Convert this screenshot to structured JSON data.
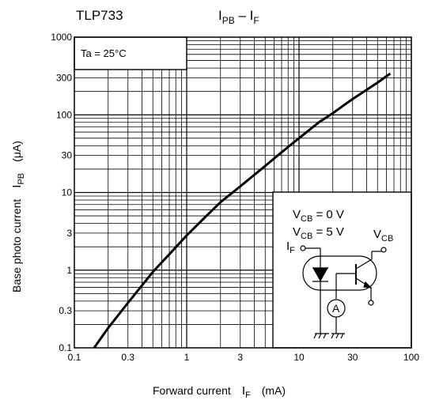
{
  "chart_data": {
    "type": "line",
    "device": "TLP733",
    "title_main": "I",
    "title_sub1": "PB",
    "title_dash": " – I",
    "title_sub2": "F",
    "condition": "Ta = 25°C",
    "xlabel": "Forward current",
    "xlabel_sym": "I",
    "xlabel_sub": "F",
    "xlabel_unit": "(mA)",
    "ylabel": "Base photo current",
    "ylabel_sym": "I",
    "ylabel_sub": "PB",
    "ylabel_unit": "(μA)",
    "x_scale": "log",
    "y_scale": "log",
    "xlim": [
      0.1,
      100
    ],
    "ylim": [
      0.1,
      1000
    ],
    "x_ticks": [
      {
        "v": 0.1,
        "label": "0.1"
      },
      {
        "v": 0.3,
        "label": "0.3"
      },
      {
        "v": 1,
        "label": "1"
      },
      {
        "v": 3,
        "label": "3"
      },
      {
        "v": 10,
        "label": "10"
      },
      {
        "v": 30,
        "label": "30"
      },
      {
        "v": 100,
        "label": "100"
      }
    ],
    "y_ticks": [
      {
        "v": 0.1,
        "label": "0.1"
      },
      {
        "v": 0.3,
        "label": "0.3"
      },
      {
        "v": 1,
        "label": "1"
      },
      {
        "v": 3,
        "label": "3"
      },
      {
        "v": 10,
        "label": "10"
      },
      {
        "v": 30,
        "label": "30"
      },
      {
        "v": 100,
        "label": "100"
      },
      {
        "v": 300,
        "label": "300"
      },
      {
        "v": 1000,
        "label": "1000"
      }
    ],
    "grid": true,
    "series": [
      {
        "x": [
          0.15,
          0.2,
          0.3,
          0.5,
          0.7,
          1,
          1.5,
          2,
          3,
          5,
          7,
          10,
          15,
          20,
          30,
          50,
          65
        ],
        "y": [
          0.1,
          0.18,
          0.38,
          0.95,
          1.6,
          2.8,
          5,
          7.5,
          12,
          22,
          33,
          50,
          80,
          105,
          160,
          260,
          340
        ]
      }
    ],
    "inset": {
      "vcb1_main": "V",
      "vcb1_sub": "CB",
      "vcb1_val": " = 0 V",
      "vcb2_main": "V",
      "vcb2_sub": "CB",
      "vcb2_val": " = 5 V",
      "if_main": "I",
      "if_sub": "F",
      "vcb_pin_main": "V",
      "vcb_pin_sub": "CB",
      "meter": "A"
    }
  }
}
